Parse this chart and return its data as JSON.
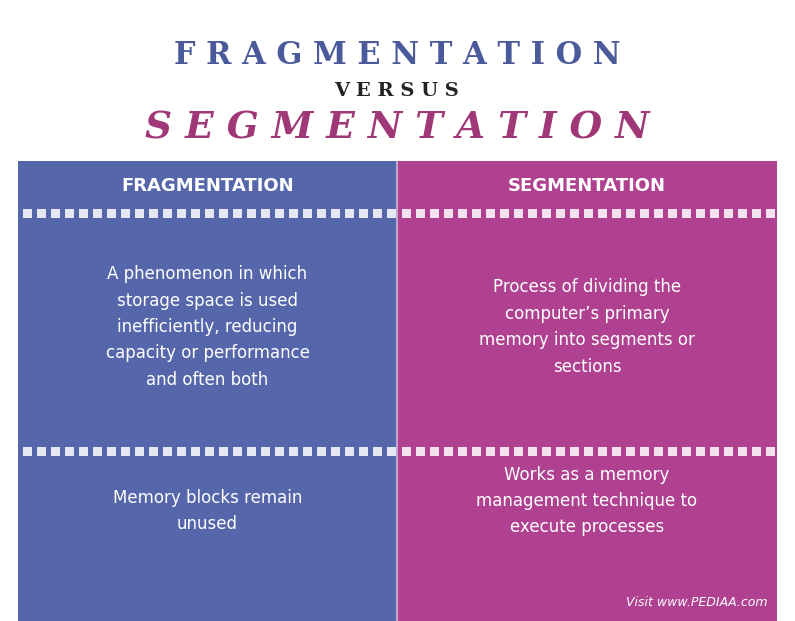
{
  "title_fragmentation": "F R A G M E N T A T I O N",
  "title_versus": "V E R S U S",
  "title_segmentation": "S E G M E N T A T I O N",
  "title_frag_color": "#4a5a9a",
  "title_versus_color": "#222222",
  "title_seg_color": "#a03878",
  "left_bg_color": "#5566aa",
  "right_bg_color": "#b04090",
  "header_left": "FRAGMENTATION",
  "header_right": "SEGMENTATION",
  "left_text1": "A phenomenon in which\nstorage space is used\ninefficiently, reducing\ncapacity or performance\nand often both",
  "right_text1": "Process of dividing the\ncomputer’s primary\nmemory into segments or\nsections",
  "left_text2": "Memory blocks remain\nunused",
  "right_text2": "Works as a memory\nmanagement technique to\nexecute processes",
  "footer_text": "Visit www.PEDIAA.com",
  "text_color_white": "#ffffff",
  "dash_color": "#ffffff",
  "background_color": "#ffffff",
  "fig_width": 7.95,
  "fig_height": 6.21
}
